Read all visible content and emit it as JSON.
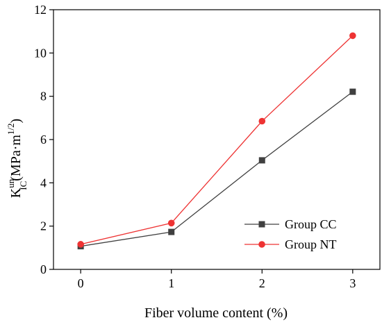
{
  "chart_data": {
    "type": "line",
    "x": [
      0,
      1,
      2,
      3
    ],
    "xticks": [
      "0",
      "1",
      "2",
      "3"
    ],
    "yticks": [
      "0",
      "2",
      "4",
      "6",
      "8",
      "10",
      "12"
    ],
    "xlim": [
      -0.3,
      3.3
    ],
    "ylim": [
      0,
      12
    ],
    "xlabel": "Fiber volume content (%)",
    "ylabel": {
      "base": "K",
      "sup": "un",
      "sub": "IC",
      "unit_open": "(MPa·m",
      "unit_exp": "1/2",
      "unit_close": ")"
    },
    "grid": false,
    "legend_position": "bottom-right",
    "series": [
      {
        "name": "Group CC",
        "values": [
          1.07,
          1.73,
          5.04,
          8.21
        ],
        "color": "#404040",
        "marker": "square"
      },
      {
        "name": "Group NT",
        "values": [
          1.16,
          2.14,
          6.85,
          10.8
        ],
        "color": "#ee3333",
        "marker": "circle"
      }
    ]
  }
}
